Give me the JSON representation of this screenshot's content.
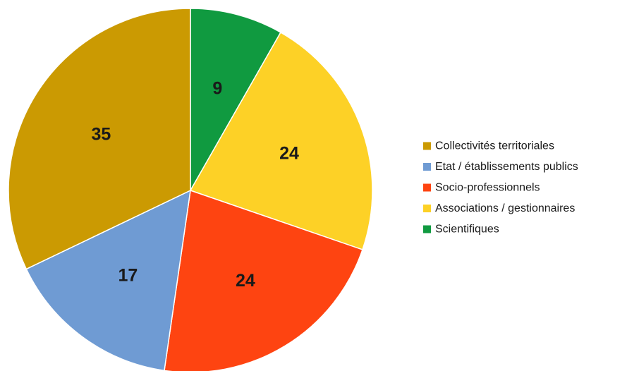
{
  "chart_data": {
    "type": "pie",
    "title": "",
    "slices": [
      {
        "label": "Scientifiques",
        "value": 9,
        "color": "#109a40"
      },
      {
        "label": "Associations / gestionnaires",
        "value": 24,
        "color": "#fdd126"
      },
      {
        "label": "Socio-professionnels",
        "value": 24,
        "color": "#fe4411"
      },
      {
        "label": "Etat / établissements publics",
        "value": 17,
        "color": "#6f9bd3"
      },
      {
        "label": "Collectivités territoriales",
        "value": 35,
        "color": "#cb9a02"
      }
    ],
    "start": "12 o'clock",
    "direction": "clockwise",
    "legend": {
      "position": "right",
      "items": [
        {
          "label": "Collectivités territoriales",
          "color": "#cb9a02"
        },
        {
          "label": "Etat / établissements publics",
          "color": "#6f9bd3"
        },
        {
          "label": "Socio-professionnels",
          "color": "#fe4411"
        },
        {
          "label": "Associations / gestionnaires",
          "color": "#fdd126"
        },
        {
          "label": "Scientifiques",
          "color": "#109a40"
        }
      ]
    }
  }
}
